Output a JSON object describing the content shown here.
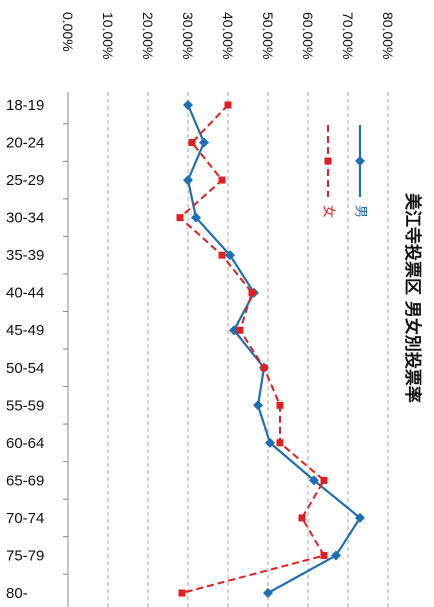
{
  "chart_data": {
    "type": "line",
    "title": "美江寺投票区 男女別投票率",
    "orientation": "rotated-90",
    "categories": [
      "18-19",
      "20-24",
      "25-29",
      "30-34",
      "35-39",
      "40-44",
      "45-49",
      "50-54",
      "55-59",
      "60-64",
      "65-69",
      "70-74",
      "75-79",
      "80-"
    ],
    "value_ticks": [
      "0.00%",
      "10.00%",
      "20.00%",
      "30.00%",
      "40.00%",
      "50.00%",
      "60.00%",
      "70.00%",
      "80.00%"
    ],
    "ylim": [
      0,
      80
    ],
    "grid": true,
    "legend_position": "top-right",
    "series": [
      {
        "name": "男",
        "color": "#1f6fb5",
        "style": "solid",
        "marker": "diamond",
        "values": [
          30.0,
          34.0,
          30.0,
          32.0,
          40.5,
          46.5,
          41.5,
          49.0,
          47.5,
          50.5,
          61.5,
          73.0,
          67.0,
          50.0
        ]
      },
      {
        "name": "女",
        "color": "#e02020",
        "style": "dashed",
        "marker": "square",
        "values": [
          40.0,
          31.0,
          38.5,
          28.0,
          38.5,
          46.0,
          43.0,
          49.0,
          53.0,
          53.0,
          64.0,
          58.5,
          64.0,
          28.5
        ]
      }
    ]
  }
}
